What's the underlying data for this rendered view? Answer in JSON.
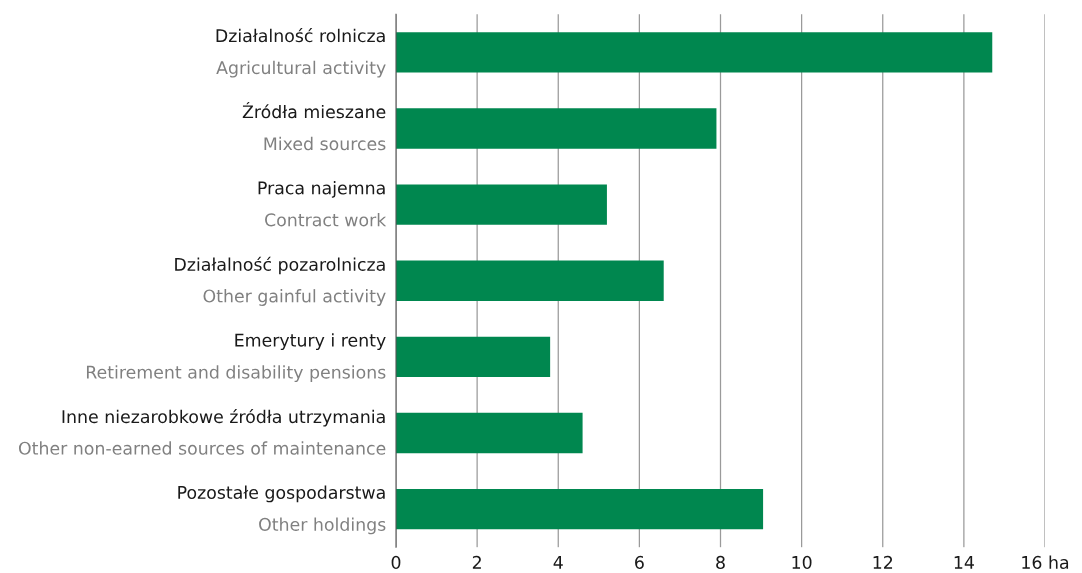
{
  "chart_data": {
    "type": "bar",
    "orientation": "horizontal",
    "categories": [
      "Działalność rolnicza\nAgricultural activity",
      "Źródła mieszane\nMixed sources",
      "Praca najemna\nContract work",
      "Działalność pozarolnicza\nOther gainful activity",
      "Emerytury i renty\nRetirement and disability pensions",
      "Inne niezarobkowe źródła utrzymania\nOther non-earned sources of maintenance",
      "Pozostałe gospodarstwa\nOther holdings"
    ],
    "values": [
      14.7,
      7.9,
      5.2,
      6.6,
      3.8,
      4.6,
      9.05
    ],
    "color": "#00874f",
    "xlim": [
      0,
      16
    ],
    "xticks": [
      0,
      2,
      4,
      6,
      8,
      10,
      12,
      14,
      {
        "value": 16,
        "label": "16 ha"
      }
    ],
    "grid": "x"
  }
}
